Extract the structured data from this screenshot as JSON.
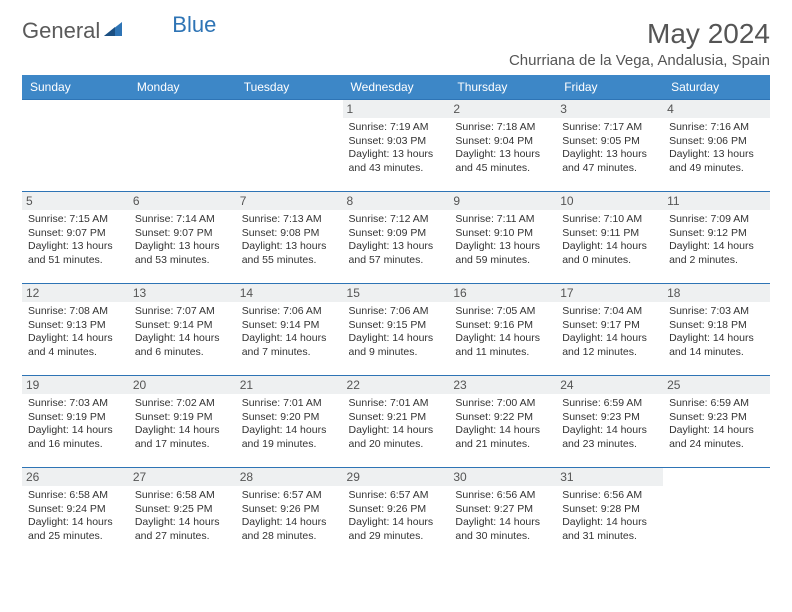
{
  "brand": {
    "part1": "General",
    "part2": "Blue"
  },
  "title": "May 2024",
  "location": "Churriana de la Vega, Andalusia, Spain",
  "colors": {
    "header_bg": "#3d87c7",
    "header_text": "#ffffff",
    "row_border": "#2e74b5",
    "daynum_bg": "#eef0f1",
    "text": "#333333",
    "logo_gray": "#5a5a5a",
    "logo_blue": "#2e74b5",
    "page_bg": "#ffffff"
  },
  "weekdays": [
    "Sunday",
    "Monday",
    "Tuesday",
    "Wednesday",
    "Thursday",
    "Friday",
    "Saturday"
  ],
  "weeks": [
    [
      {
        "day": "",
        "sunrise": "",
        "sunset": "",
        "daylight": ""
      },
      {
        "day": "",
        "sunrise": "",
        "sunset": "",
        "daylight": ""
      },
      {
        "day": "",
        "sunrise": "",
        "sunset": "",
        "daylight": ""
      },
      {
        "day": "1",
        "sunrise": "Sunrise: 7:19 AM",
        "sunset": "Sunset: 9:03 PM",
        "daylight": "Daylight: 13 hours and 43 minutes."
      },
      {
        "day": "2",
        "sunrise": "Sunrise: 7:18 AM",
        "sunset": "Sunset: 9:04 PM",
        "daylight": "Daylight: 13 hours and 45 minutes."
      },
      {
        "day": "3",
        "sunrise": "Sunrise: 7:17 AM",
        "sunset": "Sunset: 9:05 PM",
        "daylight": "Daylight: 13 hours and 47 minutes."
      },
      {
        "day": "4",
        "sunrise": "Sunrise: 7:16 AM",
        "sunset": "Sunset: 9:06 PM",
        "daylight": "Daylight: 13 hours and 49 minutes."
      }
    ],
    [
      {
        "day": "5",
        "sunrise": "Sunrise: 7:15 AM",
        "sunset": "Sunset: 9:07 PM",
        "daylight": "Daylight: 13 hours and 51 minutes."
      },
      {
        "day": "6",
        "sunrise": "Sunrise: 7:14 AM",
        "sunset": "Sunset: 9:07 PM",
        "daylight": "Daylight: 13 hours and 53 minutes."
      },
      {
        "day": "7",
        "sunrise": "Sunrise: 7:13 AM",
        "sunset": "Sunset: 9:08 PM",
        "daylight": "Daylight: 13 hours and 55 minutes."
      },
      {
        "day": "8",
        "sunrise": "Sunrise: 7:12 AM",
        "sunset": "Sunset: 9:09 PM",
        "daylight": "Daylight: 13 hours and 57 minutes."
      },
      {
        "day": "9",
        "sunrise": "Sunrise: 7:11 AM",
        "sunset": "Sunset: 9:10 PM",
        "daylight": "Daylight: 13 hours and 59 minutes."
      },
      {
        "day": "10",
        "sunrise": "Sunrise: 7:10 AM",
        "sunset": "Sunset: 9:11 PM",
        "daylight": "Daylight: 14 hours and 0 minutes."
      },
      {
        "day": "11",
        "sunrise": "Sunrise: 7:09 AM",
        "sunset": "Sunset: 9:12 PM",
        "daylight": "Daylight: 14 hours and 2 minutes."
      }
    ],
    [
      {
        "day": "12",
        "sunrise": "Sunrise: 7:08 AM",
        "sunset": "Sunset: 9:13 PM",
        "daylight": "Daylight: 14 hours and 4 minutes."
      },
      {
        "day": "13",
        "sunrise": "Sunrise: 7:07 AM",
        "sunset": "Sunset: 9:14 PM",
        "daylight": "Daylight: 14 hours and 6 minutes."
      },
      {
        "day": "14",
        "sunrise": "Sunrise: 7:06 AM",
        "sunset": "Sunset: 9:14 PM",
        "daylight": "Daylight: 14 hours and 7 minutes."
      },
      {
        "day": "15",
        "sunrise": "Sunrise: 7:06 AM",
        "sunset": "Sunset: 9:15 PM",
        "daylight": "Daylight: 14 hours and 9 minutes."
      },
      {
        "day": "16",
        "sunrise": "Sunrise: 7:05 AM",
        "sunset": "Sunset: 9:16 PM",
        "daylight": "Daylight: 14 hours and 11 minutes."
      },
      {
        "day": "17",
        "sunrise": "Sunrise: 7:04 AM",
        "sunset": "Sunset: 9:17 PM",
        "daylight": "Daylight: 14 hours and 12 minutes."
      },
      {
        "day": "18",
        "sunrise": "Sunrise: 7:03 AM",
        "sunset": "Sunset: 9:18 PM",
        "daylight": "Daylight: 14 hours and 14 minutes."
      }
    ],
    [
      {
        "day": "19",
        "sunrise": "Sunrise: 7:03 AM",
        "sunset": "Sunset: 9:19 PM",
        "daylight": "Daylight: 14 hours and 16 minutes."
      },
      {
        "day": "20",
        "sunrise": "Sunrise: 7:02 AM",
        "sunset": "Sunset: 9:19 PM",
        "daylight": "Daylight: 14 hours and 17 minutes."
      },
      {
        "day": "21",
        "sunrise": "Sunrise: 7:01 AM",
        "sunset": "Sunset: 9:20 PM",
        "daylight": "Daylight: 14 hours and 19 minutes."
      },
      {
        "day": "22",
        "sunrise": "Sunrise: 7:01 AM",
        "sunset": "Sunset: 9:21 PM",
        "daylight": "Daylight: 14 hours and 20 minutes."
      },
      {
        "day": "23",
        "sunrise": "Sunrise: 7:00 AM",
        "sunset": "Sunset: 9:22 PM",
        "daylight": "Daylight: 14 hours and 21 minutes."
      },
      {
        "day": "24",
        "sunrise": "Sunrise: 6:59 AM",
        "sunset": "Sunset: 9:23 PM",
        "daylight": "Daylight: 14 hours and 23 minutes."
      },
      {
        "day": "25",
        "sunrise": "Sunrise: 6:59 AM",
        "sunset": "Sunset: 9:23 PM",
        "daylight": "Daylight: 14 hours and 24 minutes."
      }
    ],
    [
      {
        "day": "26",
        "sunrise": "Sunrise: 6:58 AM",
        "sunset": "Sunset: 9:24 PM",
        "daylight": "Daylight: 14 hours and 25 minutes."
      },
      {
        "day": "27",
        "sunrise": "Sunrise: 6:58 AM",
        "sunset": "Sunset: 9:25 PM",
        "daylight": "Daylight: 14 hours and 27 minutes."
      },
      {
        "day": "28",
        "sunrise": "Sunrise: 6:57 AM",
        "sunset": "Sunset: 9:26 PM",
        "daylight": "Daylight: 14 hours and 28 minutes."
      },
      {
        "day": "29",
        "sunrise": "Sunrise: 6:57 AM",
        "sunset": "Sunset: 9:26 PM",
        "daylight": "Daylight: 14 hours and 29 minutes."
      },
      {
        "day": "30",
        "sunrise": "Sunrise: 6:56 AM",
        "sunset": "Sunset: 9:27 PM",
        "daylight": "Daylight: 14 hours and 30 minutes."
      },
      {
        "day": "31",
        "sunrise": "Sunrise: 6:56 AM",
        "sunset": "Sunset: 9:28 PM",
        "daylight": "Daylight: 14 hours and 31 minutes."
      },
      {
        "day": "",
        "sunrise": "",
        "sunset": "",
        "daylight": ""
      }
    ]
  ]
}
